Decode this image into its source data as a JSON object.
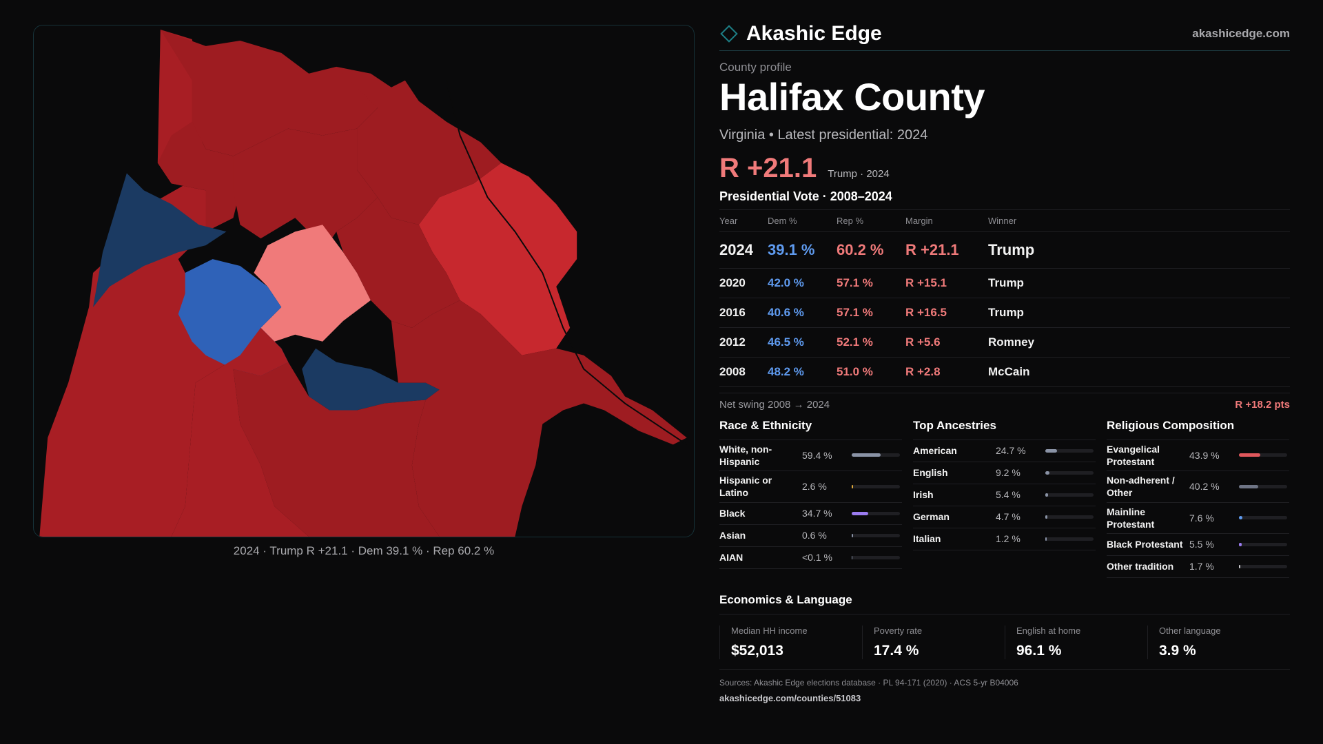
{
  "header": {
    "brand": "Akashic Edge",
    "site": "akashicedge.com"
  },
  "profile": {
    "eyebrow": "County profile",
    "county": "Halifax County",
    "subtitle": "Virginia • Latest presidential: 2024",
    "headline_margin": "R +21.1",
    "headline_note": "Trump · 2024"
  },
  "map": {
    "caption": "2024 · Trump R +21.1 · Dem 39.1 % · Rep 60.2 %",
    "colors": {
      "safe_r": "#9e1c21",
      "lean_r": "#c7282e",
      "tilt_r": "#f07a7a",
      "safe_d": "#1b3a62",
      "lean_d": "#2f62b8",
      "safe_r_alt": "#a81e24"
    }
  },
  "vote": {
    "title": "Presidential Vote · 2008–2024",
    "headers": {
      "year": "Year",
      "dem": "Dem %",
      "rep": "Rep %",
      "margin": "Margin",
      "winner": "Winner"
    },
    "rows": [
      {
        "year": "2024",
        "dem": "39.1 %",
        "rep": "60.2 %",
        "margin": "R +21.1",
        "winner": "Trump"
      },
      {
        "year": "2020",
        "dem": "42.0 %",
        "rep": "57.1 %",
        "margin": "R +15.1",
        "winner": "Trump"
      },
      {
        "year": "2016",
        "dem": "40.6 %",
        "rep": "57.1 %",
        "margin": "R +16.5",
        "winner": "Trump"
      },
      {
        "year": "2012",
        "dem": "46.5 %",
        "rep": "52.1 %",
        "margin": "R +5.6",
        "winner": "Romney"
      },
      {
        "year": "2008",
        "dem": "48.2 %",
        "rep": "51.0 %",
        "margin": "R +2.8",
        "winner": "McCain"
      }
    ],
    "swing_label": "Net swing 2008 → 2024",
    "swing_value": "R +18.2 pts"
  },
  "race": {
    "title": "Race & Ethnicity",
    "items": [
      {
        "label": "White, non-Hispanic",
        "pct": "59.4 %",
        "share": 0.594,
        "color": "#8a93a6"
      },
      {
        "label": "Hispanic or Latino",
        "pct": "2.6 %",
        "share": 0.026,
        "color": "#e0a93a"
      },
      {
        "label": "Black",
        "pct": "34.7 %",
        "share": 0.347,
        "color": "#9b7cf0"
      },
      {
        "label": "Asian",
        "pct": "0.6 %",
        "share": 0.006,
        "color": "#8a93a6"
      },
      {
        "label": "AIAN",
        "pct": "<0.1 %",
        "share": 0.0,
        "color": "#8a93a6"
      }
    ]
  },
  "ancestry": {
    "title": "Top Ancestries",
    "items": [
      {
        "label": "American",
        "pct": "24.7 %",
        "share": 0.247,
        "color": "#8a93a6"
      },
      {
        "label": "English",
        "pct": "9.2 %",
        "share": 0.092,
        "color": "#8a93a6"
      },
      {
        "label": "Irish",
        "pct": "5.4 %",
        "share": 0.054,
        "color": "#8a93a6"
      },
      {
        "label": "German",
        "pct": "4.7 %",
        "share": 0.047,
        "color": "#8a93a6"
      },
      {
        "label": "Italian",
        "pct": "1.2 %",
        "share": 0.012,
        "color": "#8a93a6"
      }
    ]
  },
  "religion": {
    "title": "Religious Composition",
    "items": [
      {
        "label": "Evangelical Protestant",
        "pct": "43.9 %",
        "share": 0.439,
        "color": "#e0575c"
      },
      {
        "label": "Non-adherent / Other",
        "pct": "40.2 %",
        "share": 0.402,
        "color": "#6e7485"
      },
      {
        "label": "Mainline Protestant",
        "pct": "7.6 %",
        "share": 0.076,
        "color": "#5f9bf0"
      },
      {
        "label": "Black Protestant",
        "pct": "5.5 %",
        "share": 0.055,
        "color": "#9b7cf0"
      },
      {
        "label": "Other tradition",
        "pct": "1.7 %",
        "share": 0.017,
        "color": "#c9c9cd"
      }
    ]
  },
  "economics": {
    "title": "Economics & Language",
    "cards": [
      {
        "label": "Median HH income",
        "value": "$52,013"
      },
      {
        "label": "Poverty rate",
        "value": "17.4 %"
      },
      {
        "label": "English at home",
        "value": "96.1 %"
      },
      {
        "label": "Other language",
        "value": "3.9 %"
      }
    ]
  },
  "footer": {
    "sources": "Sources: Akashic Edge elections database · PL 94-171 (2020) · ACS 5-yr B04006",
    "url": "akashicedge.com/counties/51083"
  }
}
